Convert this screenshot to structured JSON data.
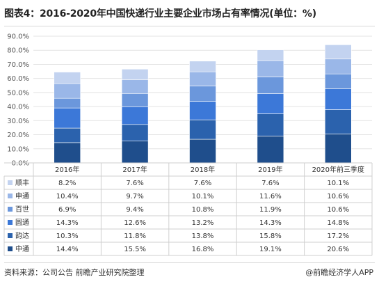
{
  "title": "图表4：2016-2020年中国快递行业主要企业市场占有率情况(单位：%)",
  "source": "资料来源：公司公告 前瞻产业研究院整理",
  "credit": "@前瞻经济学人APP",
  "chart_data": {
    "type": "bar",
    "stacked": true,
    "title": "图表4：2016-2020年中国快递行业主要企业市场占有率情况(单位：%)",
    "categories": [
      "2016年",
      "2017年",
      "2018年",
      "2019年",
      "2020年前三季度"
    ],
    "ylim": [
      0,
      90
    ],
    "yticks": [
      "0.0%",
      "10.0%",
      "20.0%",
      "30.0%",
      "40.0%",
      "50.0%",
      "60.0%",
      "70.0%",
      "80.0%",
      "90.0%"
    ],
    "grid": true,
    "series": [
      {
        "name": "中通",
        "color": "#1f4e8c",
        "values": [
          14.4,
          15.5,
          16.8,
          19.1,
          20.6
        ],
        "labels": [
          "14.4%",
          "15.5%",
          "16.8%",
          "19.1%",
          "20.6%"
        ]
      },
      {
        "name": "韵达",
        "color": "#2b62ad",
        "values": [
          10.3,
          11.8,
          13.8,
          15.8,
          17.2
        ],
        "labels": [
          "10.3%",
          "11.8%",
          "13.8%",
          "15.8%",
          "17.2%"
        ]
      },
      {
        "name": "圆通",
        "color": "#3c78d8",
        "values": [
          14.3,
          12.6,
          13.2,
          14.3,
          14.8
        ],
        "labels": [
          "14.3%",
          "12.6%",
          "13.2%",
          "14.3%",
          "14.8%"
        ]
      },
      {
        "name": "百世",
        "color": "#6b97dc",
        "values": [
          6.9,
          9.4,
          10.8,
          11.9,
          10.6
        ],
        "labels": [
          "6.9%",
          "9.4%",
          "10.8%",
          "11.9%",
          "10.6%"
        ]
      },
      {
        "name": "申通",
        "color": "#9ab7e8",
        "values": [
          10.4,
          9.7,
          10.1,
          11.6,
          10.6
        ],
        "labels": [
          "10.4%",
          "9.7%",
          "10.1%",
          "11.6%",
          "10.6%"
        ]
      },
      {
        "name": "顺丰",
        "color": "#c3d3f0",
        "values": [
          8.2,
          7.6,
          7.6,
          7.6,
          10.1
        ],
        "labels": [
          "8.2%",
          "7.6%",
          "7.6%",
          "7.6%",
          "10.1%"
        ]
      }
    ]
  }
}
